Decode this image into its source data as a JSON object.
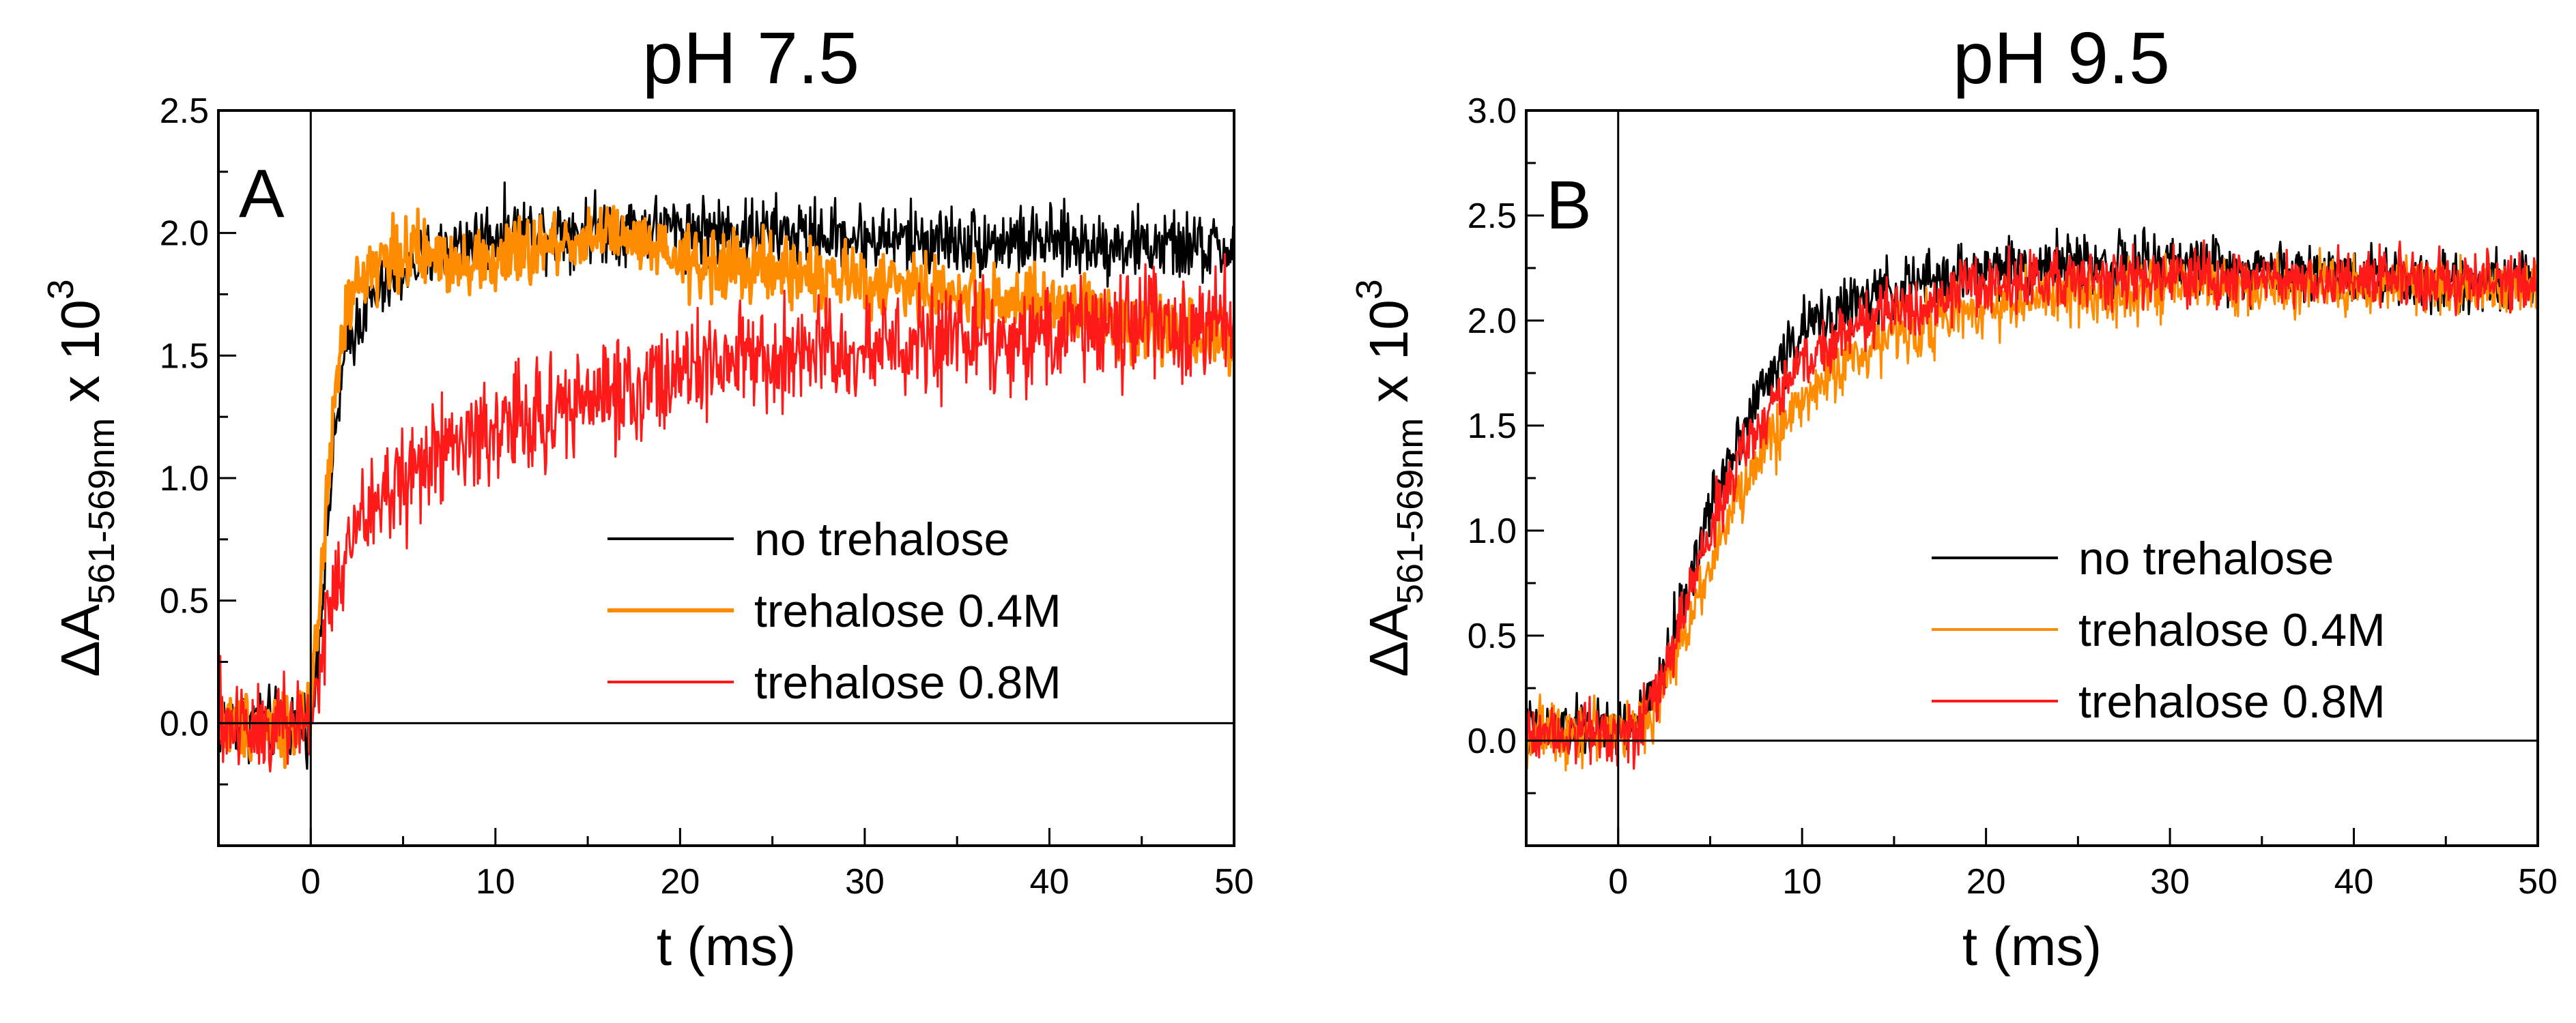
{
  "chart_data": [
    {
      "type": "line",
      "panel_letter": "A",
      "title": "pH 7.5",
      "xlabel": "t (ms)",
      "ylabel": {
        "symbol": "ΔA",
        "subscript": "561-569nm",
        "suffix": " x 10",
        "superscript": "3"
      },
      "xlim": [
        -5,
        50
      ],
      "ylim": [
        -0.5,
        2.5
      ],
      "xticks": [
        0,
        10,
        20,
        30,
        40,
        50
      ],
      "yticks": [
        0.0,
        0.5,
        1.0,
        1.5,
        2.0,
        2.5
      ],
      "ytick_labels": [
        "0.0",
        "0.5",
        "1.0",
        "1.5",
        "2.0",
        "2.5"
      ],
      "grid": false,
      "legend_position": "center-right",
      "reference_lines": {
        "x": 0,
        "y": 0
      },
      "series": [
        {
          "name": "no trehalose",
          "color": "#000000",
          "x": [
            -5,
            -2,
            0,
            0.5,
            1,
            1.5,
            2,
            3,
            4,
            5,
            7,
            10,
            15,
            20,
            25,
            30,
            35,
            40,
            45,
            50
          ],
          "y": [
            0,
            0,
            0,
            0.4,
            0.9,
            1.3,
            1.55,
            1.7,
            1.78,
            1.85,
            1.93,
            2.0,
            2.02,
            2.02,
            2.0,
            1.98,
            1.97,
            1.96,
            1.95,
            1.93
          ],
          "noise": 0.07
        },
        {
          "name": "trehalose 0.4M",
          "color": "#ff8c00",
          "x": [
            -5,
            -2,
            0,
            0.5,
            1,
            1.5,
            2,
            3,
            4,
            5,
            7,
            10,
            13,
            16,
            20,
            25,
            30,
            35,
            40,
            45,
            50
          ],
          "y": [
            0,
            0,
            0,
            0.5,
            1.05,
            1.45,
            1.7,
            1.85,
            1.9,
            1.92,
            1.9,
            1.88,
            1.95,
            2.0,
            1.88,
            1.85,
            1.8,
            1.75,
            1.7,
            1.63,
            1.58
          ],
          "noise": 0.07
        },
        {
          "name": "trehalose 0.8M",
          "color": "#ff1a1a",
          "x": [
            -5,
            -2,
            0,
            0.5,
            1,
            2,
            3,
            5,
            7,
            10,
            15,
            20,
            25,
            30,
            35,
            40,
            45,
            50
          ],
          "y": [
            0,
            0,
            0,
            0.25,
            0.45,
            0.7,
            0.85,
            1.0,
            1.1,
            1.2,
            1.32,
            1.42,
            1.48,
            1.53,
            1.57,
            1.6,
            1.62,
            1.65
          ],
          "noise": 0.11
        }
      ]
    },
    {
      "type": "line",
      "panel_letter": "B",
      "title": "pH 9.5",
      "xlabel": "t (ms)",
      "ylabel": {
        "symbol": "ΔA",
        "subscript": "561-569nm",
        "suffix": " x 10",
        "superscript": "3"
      },
      "xlim": [
        -5,
        50
      ],
      "ylim": [
        -0.5,
        3.0
      ],
      "xticks": [
        0,
        10,
        20,
        30,
        40,
        50
      ],
      "yticks": [
        0.0,
        0.5,
        1.0,
        1.5,
        2.0,
        2.5,
        3.0
      ],
      "ytick_labels": [
        "0.0",
        "0.5",
        "1.0",
        "1.5",
        "2.0",
        "2.5",
        "3.0"
      ],
      "grid": false,
      "legend_position": "center-right",
      "reference_lines": {
        "x": 0,
        "y": 0
      },
      "series": [
        {
          "name": "no trehalose",
          "color": "#000000",
          "x": [
            -5,
            -1,
            1,
            2,
            3,
            4,
            5,
            6,
            8,
            10,
            12,
            15,
            20,
            25,
            30,
            35,
            40,
            45,
            50
          ],
          "y": [
            0.05,
            0.05,
            0.08,
            0.2,
            0.5,
            0.8,
            1.1,
            1.35,
            1.7,
            1.95,
            2.05,
            2.15,
            2.25,
            2.27,
            2.27,
            2.25,
            2.22,
            2.2,
            2.17
          ],
          "noise": 0.07
        },
        {
          "name": "trehalose 0.4M",
          "color": "#ff8c00",
          "x": [
            -5,
            -1,
            1,
            2,
            3,
            4,
            5,
            6,
            8,
            10,
            12,
            15,
            20,
            25,
            30,
            35,
            40,
            45,
            50
          ],
          "y": [
            0.05,
            0.05,
            0.05,
            0.15,
            0.35,
            0.62,
            0.85,
            1.05,
            1.4,
            1.62,
            1.78,
            1.93,
            2.07,
            2.12,
            2.15,
            2.15,
            2.17,
            2.17,
            2.17
          ],
          "noise": 0.07
        },
        {
          "name": "trehalose 0.8M",
          "color": "#ff1a1a",
          "x": [
            -5,
            -1,
            1,
            2,
            3,
            4,
            5,
            6,
            8,
            10,
            12,
            15,
            20,
            25,
            30,
            35,
            40,
            45,
            50
          ],
          "y": [
            0.05,
            0.05,
            0.06,
            0.18,
            0.45,
            0.75,
            1.0,
            1.22,
            1.55,
            1.8,
            1.93,
            2.05,
            2.17,
            2.2,
            2.2,
            2.2,
            2.2,
            2.2,
            2.18
          ],
          "noise": 0.07
        }
      ]
    }
  ]
}
